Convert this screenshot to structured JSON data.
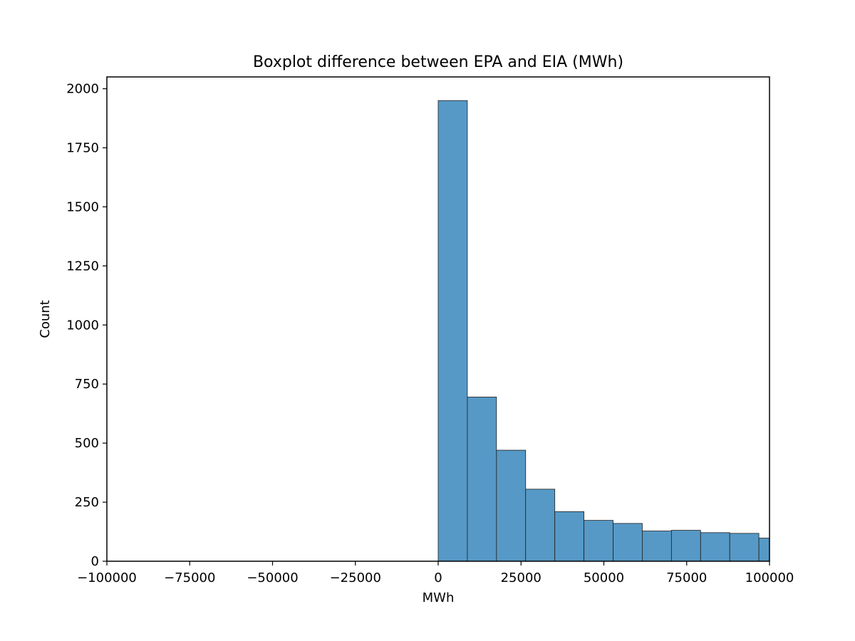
{
  "chart_data": {
    "type": "bar",
    "title": "Boxplot difference between EPA and EIA (MWh)",
    "xlabel": "MWh",
    "ylabel": "Count",
    "xlim": [
      -100000,
      100000
    ],
    "ylim": [
      0,
      2050
    ],
    "x_ticks": [
      -100000,
      -75000,
      -50000,
      -25000,
      0,
      25000,
      50000,
      75000,
      100000
    ],
    "x_tick_labels": [
      "−100000",
      "−75000",
      "−50000",
      "−25000",
      "0",
      "25000",
      "50000",
      "75000",
      "100000"
    ],
    "y_ticks": [
      0,
      250,
      500,
      750,
      1000,
      1250,
      1500,
      1750,
      2000
    ],
    "y_tick_labels": [
      "0",
      "250",
      "500",
      "750",
      "1000",
      "1250",
      "1500",
      "1750",
      "2000"
    ],
    "bin_edges": [
      0,
      8800,
      17600,
      26400,
      35200,
      44000,
      52800,
      61600,
      70400,
      79200,
      88000,
      96800,
      105600
    ],
    "counts": [
      1950,
      695,
      470,
      305,
      210,
      173,
      160,
      128,
      131,
      121,
      118,
      98
    ],
    "bar_color": "#5699c6",
    "edge_color": "#1f1f1f",
    "grid": false,
    "legend": "none"
  }
}
